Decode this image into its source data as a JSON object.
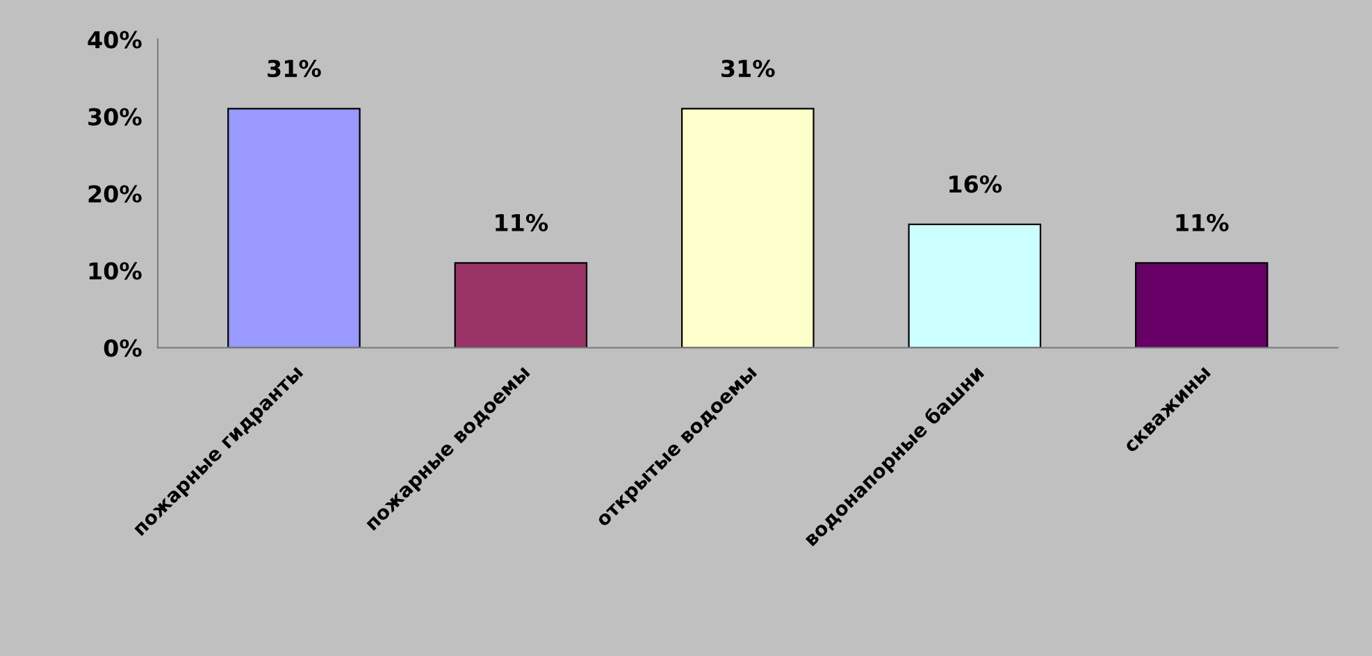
{
  "chart_data": {
    "type": "bar",
    "categories": [
      "пожарные гидранты",
      "пожарные водоемы",
      "открытые водоемы",
      "водонапорные башни",
      "скважины"
    ],
    "values": [
      31,
      11,
      31,
      16,
      11
    ],
    "colors": [
      "#9999ff",
      "#993366",
      "#ffffcc",
      "#ccffff",
      "#660066"
    ],
    "value_labels": [
      "31%",
      "11%",
      "31%",
      "16%",
      "11%"
    ],
    "ylim": [
      0,
      40
    ],
    "yticks": [
      {
        "value": 0,
        "label": "0%"
      },
      {
        "value": 10,
        "label": "10%"
      },
      {
        "value": 20,
        "label": "20%"
      },
      {
        "value": 30,
        "label": "30%"
      },
      {
        "value": 40,
        "label": "40%"
      }
    ],
    "grid": false
  }
}
